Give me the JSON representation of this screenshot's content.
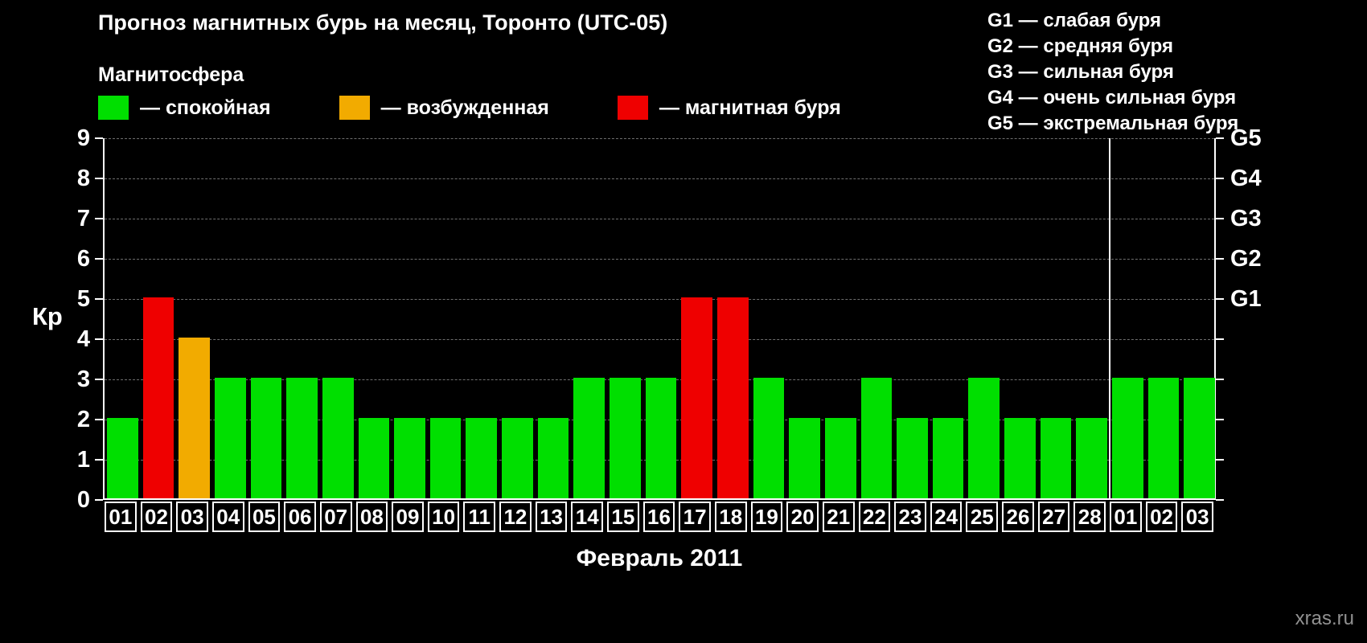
{
  "header": {
    "title": "Прогноз магнитных бурь на месяц, Торонто (UTC-05)",
    "watermark": "xras.ru"
  },
  "legend": {
    "title": "Магнитосфера",
    "items": [
      {
        "label": "— спокойная",
        "color": "#00df00"
      },
      {
        "label": "— возбужденная",
        "color": "#f2ab00"
      },
      {
        "label": "— магнитная буря",
        "color": "#ef0000"
      }
    ]
  },
  "g_scale": [
    "G1 — слабая буря",
    "G2 — средняя буря",
    "G3 — сильная буря",
    "G4 — очень сильная буря",
    "G5 — экстремальная буря"
  ],
  "chart_data": {
    "type": "bar",
    "title": "Прогноз магнитных бурь на месяц, Торонто (UTC-05)",
    "xlabel": "Февраль 2011",
    "ylabel": "Кр",
    "ylim": [
      0,
      9
    ],
    "yticks": [
      0,
      1,
      2,
      3,
      4,
      5,
      6,
      7,
      8,
      9
    ],
    "grid": "dashed horizontal",
    "categories": [
      "01",
      "02",
      "03",
      "04",
      "05",
      "06",
      "07",
      "08",
      "09",
      "10",
      "11",
      "12",
      "13",
      "14",
      "15",
      "16",
      "17",
      "18",
      "19",
      "20",
      "21",
      "22",
      "23",
      "24",
      "25",
      "26",
      "27",
      "28",
      "01",
      "02",
      "03"
    ],
    "values": [
      2,
      5,
      4,
      3,
      3,
      3,
      3,
      2,
      2,
      2,
      2,
      2,
      2,
      3,
      3,
      3,
      5,
      5,
      3,
      2,
      2,
      3,
      2,
      2,
      3,
      2,
      2,
      2,
      3,
      3,
      3
    ],
    "month_boundary_after_index": 27,
    "thresholds": {
      "excited": 4,
      "storm": 5
    },
    "colors": {
      "quiet": "#00df00",
      "excited": "#f2ab00",
      "storm": "#ef0000"
    },
    "right_axis": [
      {
        "label": "G1",
        "value": 5
      },
      {
        "label": "G2",
        "value": 6
      },
      {
        "label": "G3",
        "value": 7
      },
      {
        "label": "G4",
        "value": 8
      },
      {
        "label": "G5",
        "value": 9
      }
    ]
  }
}
